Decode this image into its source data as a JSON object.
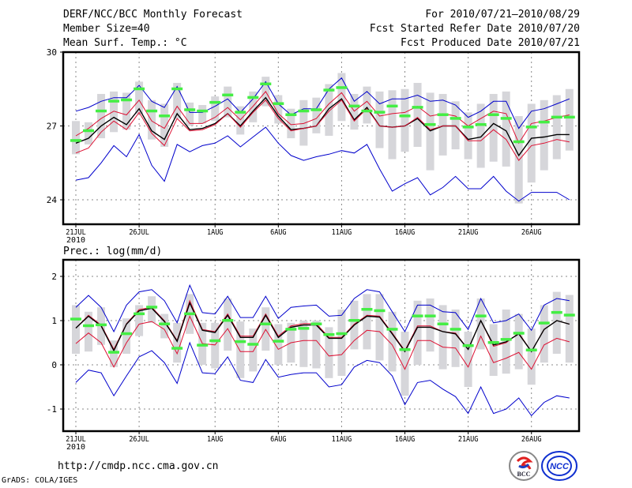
{
  "header": {
    "title": "DERF/NCC/BCC Monthly Forecast",
    "member_size": "Member Size=40",
    "variable": "Mean Surf. Temp.: °C",
    "period": "For 2010/07/21—2010/08/29",
    "started": "Fcst Started Refer Date 2010/07/20",
    "produced": "Fcst Produced Date 2010/07/21"
  },
  "footer": {
    "url": "http://cmdp.ncc.cma.gov.cn",
    "grads": "GrADS: COLA/IGES",
    "logo_left": "BCC",
    "logo_right": "NCC"
  },
  "colors": {
    "envelope": "#0000cc",
    "spread": "#dd1133",
    "mean": "#000000",
    "marker": "#44ee44",
    "box": "#d6d6da"
  },
  "chart_data": [
    {
      "type": "line",
      "title": "Mean Surf. Temp.: °C",
      "xlabel": "",
      "ylabel": "",
      "x_start": "21JUL2010",
      "x_ticks": [
        "21JUL",
        "26JUL",
        "1AUG",
        "6AUG",
        "11AUG",
        "16AUG",
        "21AUG",
        "26AUG"
      ],
      "x_tick_index": [
        0,
        5,
        11,
        16,
        21,
        26,
        31,
        36
      ],
      "x_sub": "2010",
      "y_ticks": [
        "24",
        "27",
        "30"
      ],
      "ylim": [
        23,
        30
      ],
      "grid": true,
      "series": [
        {
          "name": "upper-envelope",
          "color": "#0000cc",
          "values": [
            27.6,
            27.75,
            28.0,
            28.15,
            28.15,
            28.65,
            28.0,
            27.75,
            28.6,
            27.55,
            27.55,
            27.8,
            28.1,
            27.55,
            28.1,
            28.8,
            27.9,
            27.45,
            27.7,
            27.7,
            28.5,
            28.95,
            28.0,
            28.4,
            27.9,
            28.1,
            28.1,
            28.25,
            28.0,
            28.05,
            27.85,
            27.35,
            27.6,
            28.0,
            28.0,
            26.9,
            27.6,
            27.7,
            27.9,
            28.1
          ]
        },
        {
          "name": "upper-spread",
          "color": "#dd1133",
          "values": [
            26.6,
            26.9,
            27.3,
            27.6,
            27.45,
            28.05,
            27.2,
            26.9,
            27.8,
            27.1,
            27.1,
            27.35,
            27.75,
            27.25,
            27.8,
            28.4,
            27.5,
            27.05,
            27.1,
            27.3,
            27.9,
            28.35,
            27.6,
            28.0,
            27.4,
            27.5,
            27.55,
            27.8,
            27.4,
            27.5,
            27.4,
            27.0,
            27.3,
            27.6,
            27.5,
            26.3,
            27.1,
            27.2,
            27.35,
            27.45
          ]
        },
        {
          "name": "ensemble-mean",
          "color": "#000000",
          "values": [
            26.3,
            26.5,
            27.0,
            27.35,
            27.05,
            27.7,
            26.8,
            26.45,
            27.5,
            26.85,
            26.9,
            27.1,
            27.5,
            27.0,
            27.6,
            28.15,
            27.4,
            26.85,
            26.9,
            27.0,
            27.7,
            28.1,
            27.25,
            27.75,
            27.0,
            26.95,
            27.0,
            27.3,
            26.8,
            27.0,
            27.0,
            26.45,
            26.55,
            27.1,
            26.8,
            25.8,
            26.5,
            26.55,
            26.65,
            26.65
          ]
        },
        {
          "name": "lower-spread",
          "color": "#dd1133",
          "values": [
            25.9,
            26.1,
            26.75,
            27.2,
            26.85,
            27.55,
            26.7,
            26.2,
            27.3,
            26.8,
            26.85,
            27.05,
            27.5,
            26.95,
            27.55,
            28.05,
            27.3,
            26.8,
            26.9,
            27.0,
            27.6,
            28.05,
            27.2,
            27.7,
            27.0,
            26.95,
            27.0,
            27.35,
            26.85,
            27.0,
            27.0,
            26.4,
            26.4,
            26.85,
            26.45,
            25.6,
            26.2,
            26.3,
            26.45,
            26.35
          ]
        },
        {
          "name": "lower-envelope",
          "color": "#0000cc",
          "values": [
            24.8,
            24.9,
            25.5,
            26.2,
            25.75,
            26.65,
            25.4,
            24.75,
            26.25,
            25.95,
            26.2,
            26.3,
            26.6,
            26.15,
            26.55,
            26.95,
            26.3,
            25.8,
            25.6,
            25.75,
            25.85,
            26.0,
            25.9,
            26.25,
            25.25,
            24.35,
            24.65,
            24.9,
            24.2,
            24.5,
            24.95,
            24.45,
            24.45,
            24.95,
            24.35,
            23.95,
            24.3,
            24.3,
            24.3,
            24.0
          ]
        },
        {
          "name": "markers",
          "color": "#44ee44",
          "values": [
            26.4,
            26.8,
            27.6,
            28.0,
            28.05,
            28.5,
            27.6,
            27.4,
            28.5,
            27.65,
            27.6,
            27.95,
            28.25,
            27.55,
            28.15,
            28.7,
            27.9,
            27.45,
            27.6,
            27.65,
            28.45,
            28.55,
            27.8,
            27.6,
            27.55,
            27.8,
            27.4,
            27.75,
            27.05,
            27.45,
            27.3,
            26.95,
            27.05,
            27.45,
            27.3,
            26.35,
            26.95,
            27.15,
            27.35,
            27.35
          ]
        }
      ],
      "boxes": {
        "low": [
          25.85,
          26.25,
          26.5,
          26.75,
          26.85,
          27.5,
          26.45,
          26.15,
          27.3,
          27.0,
          27.1,
          27.2,
          27.35,
          26.65,
          27.15,
          27.8,
          27.1,
          26.5,
          26.2,
          26.7,
          26.6,
          27.2,
          26.85,
          27.1,
          26.1,
          25.65,
          25.95,
          26.15,
          25.2,
          25.8,
          26.05,
          25.65,
          25.3,
          25.55,
          25.35,
          23.85,
          24.7,
          25.2,
          25.65,
          26.0
        ],
        "high": [
          27.2,
          27.15,
          28.3,
          28.4,
          28.35,
          28.8,
          28.05,
          27.9,
          28.75,
          27.95,
          27.85,
          28.2,
          28.6,
          27.8,
          28.4,
          29.0,
          28.25,
          27.7,
          28.05,
          28.15,
          28.7,
          29.15,
          28.3,
          28.6,
          28.4,
          28.45,
          28.5,
          28.75,
          28.35,
          28.3,
          28.0,
          27.55,
          27.9,
          28.3,
          28.4,
          27.4,
          27.9,
          28.05,
          28.25,
          28.5
        ]
      }
    },
    {
      "type": "line",
      "title": "Prec.: log(mm/d)",
      "xlabel": "",
      "ylabel": "",
      "x_start": "21JUL2010",
      "x_ticks": [
        "21JUL",
        "26JUL",
        "1AUG",
        "6AUG",
        "11AUG",
        "16AUG",
        "21AUG",
        "26AUG"
      ],
      "x_tick_index": [
        0,
        5,
        11,
        16,
        21,
        26,
        31,
        36
      ],
      "x_sub": "2010",
      "y_ticks": [
        "-1",
        "0",
        "1",
        "2"
      ],
      "ylim": [
        -1.5,
        2.4
      ],
      "grid": true,
      "series": [
        {
          "name": "upper-envelope",
          "color": "#0000cc",
          "values": [
            1.3,
            1.57,
            1.3,
            0.75,
            1.35,
            1.65,
            1.7,
            1.45,
            0.95,
            1.8,
            1.18,
            1.15,
            1.55,
            1.07,
            1.07,
            1.55,
            1.05,
            1.3,
            1.33,
            1.35,
            1.1,
            1.12,
            1.5,
            1.7,
            1.65,
            1.2,
            0.75,
            1.35,
            1.35,
            1.2,
            1.18,
            0.8,
            1.5,
            0.95,
            1.0,
            1.15,
            0.78,
            1.35,
            1.5,
            1.45
          ]
        },
        {
          "name": "upper-spread",
          "color": "#dd1133",
          "values": [
            0.83,
            1.12,
            0.9,
            0.35,
            0.93,
            1.25,
            1.3,
            1.0,
            0.55,
            1.45,
            0.8,
            0.75,
            1.15,
            0.65,
            0.65,
            1.15,
            0.65,
            0.88,
            0.93,
            0.93,
            0.62,
            0.62,
            0.92,
            1.12,
            1.1,
            0.72,
            0.32,
            0.88,
            0.88,
            0.75,
            0.72,
            0.35,
            1.0,
            0.42,
            0.5,
            0.72,
            0.3,
            0.8,
            1.0,
            0.92
          ]
        },
        {
          "name": "ensemble-mean",
          "color": "#000000",
          "values": [
            0.83,
            1.1,
            0.88,
            0.32,
            0.92,
            1.22,
            1.28,
            0.98,
            0.53,
            1.4,
            0.78,
            0.73,
            1.12,
            0.62,
            0.62,
            1.12,
            0.62,
            0.85,
            0.9,
            0.9,
            0.6,
            0.6,
            0.9,
            1.1,
            1.08,
            0.7,
            0.3,
            0.85,
            0.85,
            0.75,
            0.7,
            0.35,
            1.0,
            0.45,
            0.52,
            0.7,
            0.3,
            0.8,
            1.0,
            0.92
          ]
        },
        {
          "name": "lower-spread",
          "color": "#dd1133",
          "values": [
            0.48,
            0.72,
            0.5,
            -0.05,
            0.5,
            0.92,
            0.98,
            0.8,
            0.25,
            1.1,
            0.48,
            0.45,
            0.82,
            0.3,
            0.3,
            0.8,
            0.35,
            0.5,
            0.55,
            0.55,
            0.2,
            0.23,
            0.55,
            0.78,
            0.75,
            0.45,
            -0.1,
            0.55,
            0.55,
            0.4,
            0.38,
            -0.05,
            0.65,
            0.05,
            0.15,
            0.28,
            -0.1,
            0.45,
            0.6,
            0.52
          ]
        },
        {
          "name": "lower-envelope",
          "color": "#0000cc",
          "values": [
            -0.4,
            -0.12,
            -0.18,
            -0.7,
            -0.25,
            0.18,
            0.32,
            0.05,
            -0.42,
            0.5,
            -0.18,
            -0.2,
            0.18,
            -0.35,
            -0.4,
            0.12,
            -0.28,
            -0.22,
            -0.18,
            -0.18,
            -0.5,
            -0.45,
            -0.05,
            0.1,
            0.05,
            -0.25,
            -0.9,
            -0.4,
            -0.35,
            -0.55,
            -0.72,
            -1.1,
            -0.5,
            -1.1,
            -1.0,
            -0.75,
            -1.15,
            -0.85,
            -0.7,
            -0.75
          ]
        },
        {
          "name": "markers",
          "color": "#44ee44",
          "values": [
            1.03,
            0.88,
            0.9,
            0.28,
            0.7,
            1.15,
            1.3,
            0.92,
            0.37,
            1.15,
            0.44,
            0.54,
            1.0,
            0.52,
            0.46,
            0.92,
            0.53,
            0.8,
            0.82,
            0.92,
            0.68,
            0.7,
            1.0,
            1.25,
            1.22,
            0.8,
            0.34,
            1.1,
            1.1,
            0.92,
            0.8,
            0.43,
            1.1,
            0.5,
            0.57,
            0.71,
            0.33,
            0.94,
            1.18,
            1.12
          ]
        }
      ],
      "boxes": {
        "low": [
          0.25,
          0.3,
          0.45,
          -0.05,
          0.25,
          0.65,
          0.95,
          0.6,
          0.05,
          0.7,
          0.0,
          -0.08,
          0.32,
          -0.3,
          -0.15,
          0.32,
          0.0,
          0.05,
          -0.05,
          -0.08,
          -0.3,
          -0.25,
          0.35,
          0.35,
          0.1,
          -0.15,
          -0.7,
          0.0,
          0.3,
          -0.1,
          -0.05,
          -0.5,
          0.35,
          -0.25,
          -0.2,
          -0.1,
          -0.45,
          0.05,
          0.25,
          0.05
        ],
        "high": [
          1.35,
          1.2,
          1.3,
          0.55,
          1.05,
          1.35,
          1.55,
          1.15,
          0.95,
          1.6,
          0.95,
          0.95,
          1.5,
          0.98,
          0.82,
          1.3,
          0.92,
          0.95,
          1.0,
          1.0,
          0.85,
          1.25,
          1.45,
          1.6,
          1.6,
          1.2,
          0.75,
          1.45,
          1.5,
          1.35,
          1.25,
          0.75,
          1.5,
          0.92,
          1.25,
          1.15,
          0.82,
          1.35,
          1.65,
          1.58
        ]
      }
    }
  ]
}
